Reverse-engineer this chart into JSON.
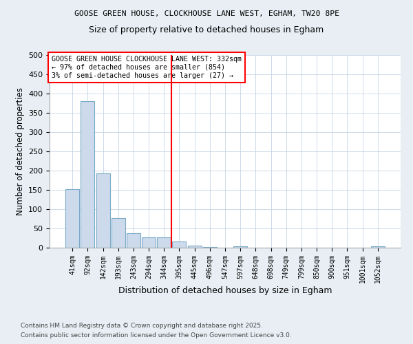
{
  "title1": "GOOSE GREEN HOUSE, CLOCKHOUSE LANE WEST, EGHAM, TW20 8PE",
  "title2": "Size of property relative to detached houses in Egham",
  "xlabel": "Distribution of detached houses by size in Egham",
  "ylabel": "Number of detached properties",
  "categories": [
    "41sqm",
    "92sqm",
    "142sqm",
    "193sqm",
    "243sqm",
    "294sqm",
    "344sqm",
    "395sqm",
    "445sqm",
    "496sqm",
    "547sqm",
    "597sqm",
    "648sqm",
    "698sqm",
    "749sqm",
    "799sqm",
    "850sqm",
    "900sqm",
    "951sqm",
    "1001sqm",
    "1052sqm"
  ],
  "values": [
    152,
    381,
    192,
    77,
    38,
    26,
    26,
    16,
    6,
    2,
    0,
    3,
    0,
    0,
    0,
    0,
    0,
    0,
    0,
    0,
    3
  ],
  "bar_color": "#ccdaeb",
  "bar_edge_color": "#7aaac8",
  "red_line_x": 6.5,
  "annotation_line1": "GOOSE GREEN HOUSE CLOCKHOUSE LANE WEST: 332sqm",
  "annotation_line2": "← 97% of detached houses are smaller (854)",
  "annotation_line3": "3% of semi-detached houses are larger (27) →",
  "ylim": [
    0,
    500
  ],
  "yticks": [
    0,
    50,
    100,
    150,
    200,
    250,
    300,
    350,
    400,
    450,
    500
  ],
  "footnote1": "Contains HM Land Registry data © Crown copyright and database right 2025.",
  "footnote2": "Contains public sector information licensed under the Open Government Licence v3.0.",
  "bg_color": "#e8eef4",
  "plot_bg_color": "#ffffff",
  "grid_color": "#c5d5e5"
}
